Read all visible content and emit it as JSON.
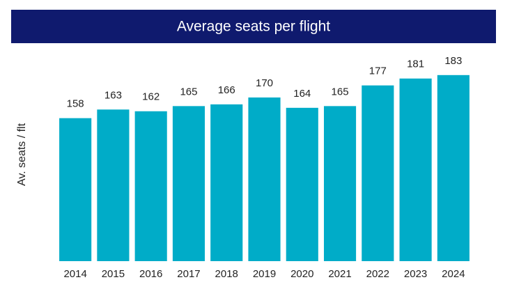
{
  "chart_data": {
    "type": "bar",
    "title": "Average seats per flight",
    "y_label": "Av. seats / flt",
    "categories": [
      "2014",
      "2015",
      "2016",
      "2017",
      "2018",
      "2019",
      "2020",
      "2021",
      "2022",
      "2023",
      "2024"
    ],
    "values": [
      158,
      163,
      162,
      165,
      166,
      170,
      164,
      165,
      177,
      181,
      183
    ],
    "color": "#00acc8",
    "title_background": "#0f1a6e",
    "ylim": [
      75,
      190
    ],
    "grid": false
  }
}
